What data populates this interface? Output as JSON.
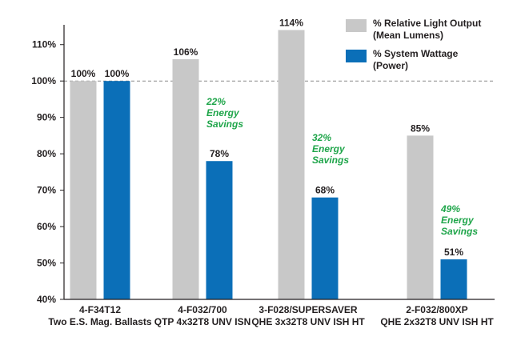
{
  "colors": {
    "relative_light_output": "#c8c8c8",
    "system_wattage": "#0b6fb8",
    "savings_text": "#1fa54a",
    "text": "#231f20",
    "axis": "#231f20",
    "reference_line": "#8c8c8c"
  },
  "chart_data": {
    "type": "bar",
    "title": "",
    "xlabel": "",
    "ylabel": "",
    "ylim": [
      40,
      115
    ],
    "yticks": [
      40,
      50,
      60,
      70,
      80,
      90,
      100,
      110
    ],
    "ytick_suffix": "%",
    "reference_line": 100,
    "legend_position": "top-right",
    "categories": [
      {
        "line1": "4-F34T12",
        "line2": "Two E.S. Mag. Ballasts"
      },
      {
        "line1": "4-F032/700",
        "line2": "QTP 4x32T8 UNV ISN"
      },
      {
        "line1": "3-F028/SUPERSAVER",
        "line2": "QHE 3x32T8 UNV ISH HT"
      },
      {
        "line1": "2-F032/800XP",
        "line2": "QHE 2x32T8 UNV ISH HT"
      }
    ],
    "series": [
      {
        "name": "% Relative Light Output",
        "name_line2": "(Mean Lumens)",
        "color_key": "relative_light_output",
        "values": [
          100,
          106,
          114,
          85
        ],
        "labels": [
          "100%",
          "106%",
          "114%",
          "85%"
        ]
      },
      {
        "name": "% System Wattage",
        "name_line2": "(Power)",
        "color_key": "system_wattage",
        "values": [
          100,
          78,
          68,
          51
        ],
        "labels": [
          "100%",
          "78%",
          "68%",
          "51%"
        ]
      }
    ],
    "annotations": [
      {
        "category_index": 1,
        "lines": [
          "22%",
          "Energy",
          "Savings"
        ]
      },
      {
        "category_index": 2,
        "lines": [
          "32%",
          "Energy",
          "Savings"
        ]
      },
      {
        "category_index": 3,
        "lines": [
          "49%",
          "Energy",
          "Savings"
        ]
      }
    ]
  }
}
